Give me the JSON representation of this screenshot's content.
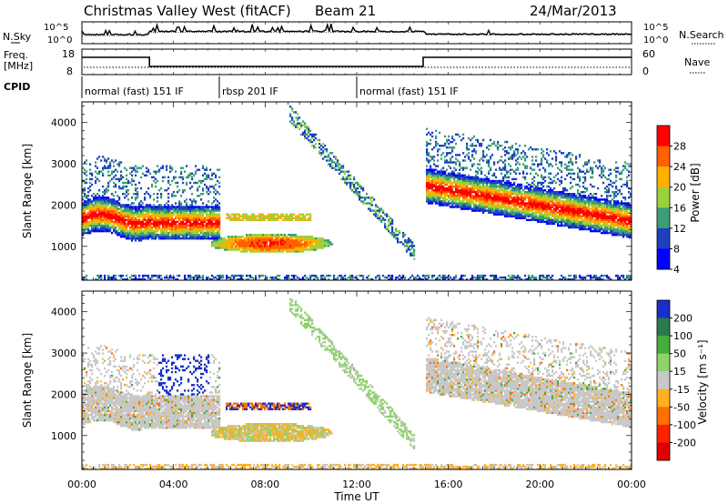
{
  "header": {
    "station": "Christmas Valley West (fitACF)",
    "beam": "Beam 21",
    "date": "24/Mar/2013"
  },
  "side_labels": {
    "nsky": "N.Sky",
    "nsearch": "N.Search",
    "freq_line1": "Freq.",
    "freq_line2": "[MHz]",
    "nave": "Nave",
    "cpid": "CPID"
  },
  "scale_labels": {
    "noise_top": "10^5",
    "noise_bottom": "10^0",
    "noise_top_right": "10^5",
    "noise_bottom_right": "10^0",
    "freq_top": "18",
    "freq_bottom": "8",
    "nave_top": "60",
    "nave_bottom": "0"
  },
  "cpid_segments": [
    {
      "label": "normal (fast) 151 IF",
      "start_hour": 0,
      "end_hour": 6
    },
    {
      "label": "rbsp 201 IF",
      "start_hour": 6,
      "end_hour": 12
    },
    {
      "label": "normal (fast) 151 IF",
      "start_hour": 12,
      "end_hour": 24
    }
  ],
  "chart_data": [
    {
      "type": "heatmap",
      "panel": "power",
      "ylabel": "Slant Range [km]",
      "y_ticks": [
        1000,
        2000,
        3000,
        4000
      ],
      "ylim": [
        180,
        4500
      ],
      "colorbar_label": "Power [dB]",
      "colorbar_ticks": [
        "28",
        "24",
        "20",
        "16",
        "12",
        "8",
        "4"
      ],
      "colorbar_colors": [
        "#ff0000",
        "#ff6000",
        "#ffb000",
        "#9ad23c",
        "#3a9e78",
        "#2040c0",
        "#0000ff"
      ]
    },
    {
      "type": "heatmap",
      "panel": "velocity",
      "ylabel": "Slant Range [km]",
      "y_ticks": [
        1000,
        2000,
        3000,
        4000
      ],
      "ylim": [
        180,
        4500
      ],
      "colorbar_label": "Velocity [m s⁻¹]",
      "colorbar_ticks": [
        "200",
        "100",
        "50",
        "15",
        "-15",
        "-50",
        "-100",
        "-200"
      ],
      "colorbar_colors": [
        "#1830c8",
        "#2a7a50",
        "#45ad3c",
        "#8fd46a",
        "#c8c8c8",
        "#ffb020",
        "#ff7000",
        "#ff2000",
        "#e00000"
      ]
    }
  ],
  "x_axis": {
    "label": "Time UT",
    "ticks": [
      "00:00",
      "04:00",
      "08:00",
      "12:00",
      "16:00",
      "20:00",
      "00:00"
    ]
  }
}
